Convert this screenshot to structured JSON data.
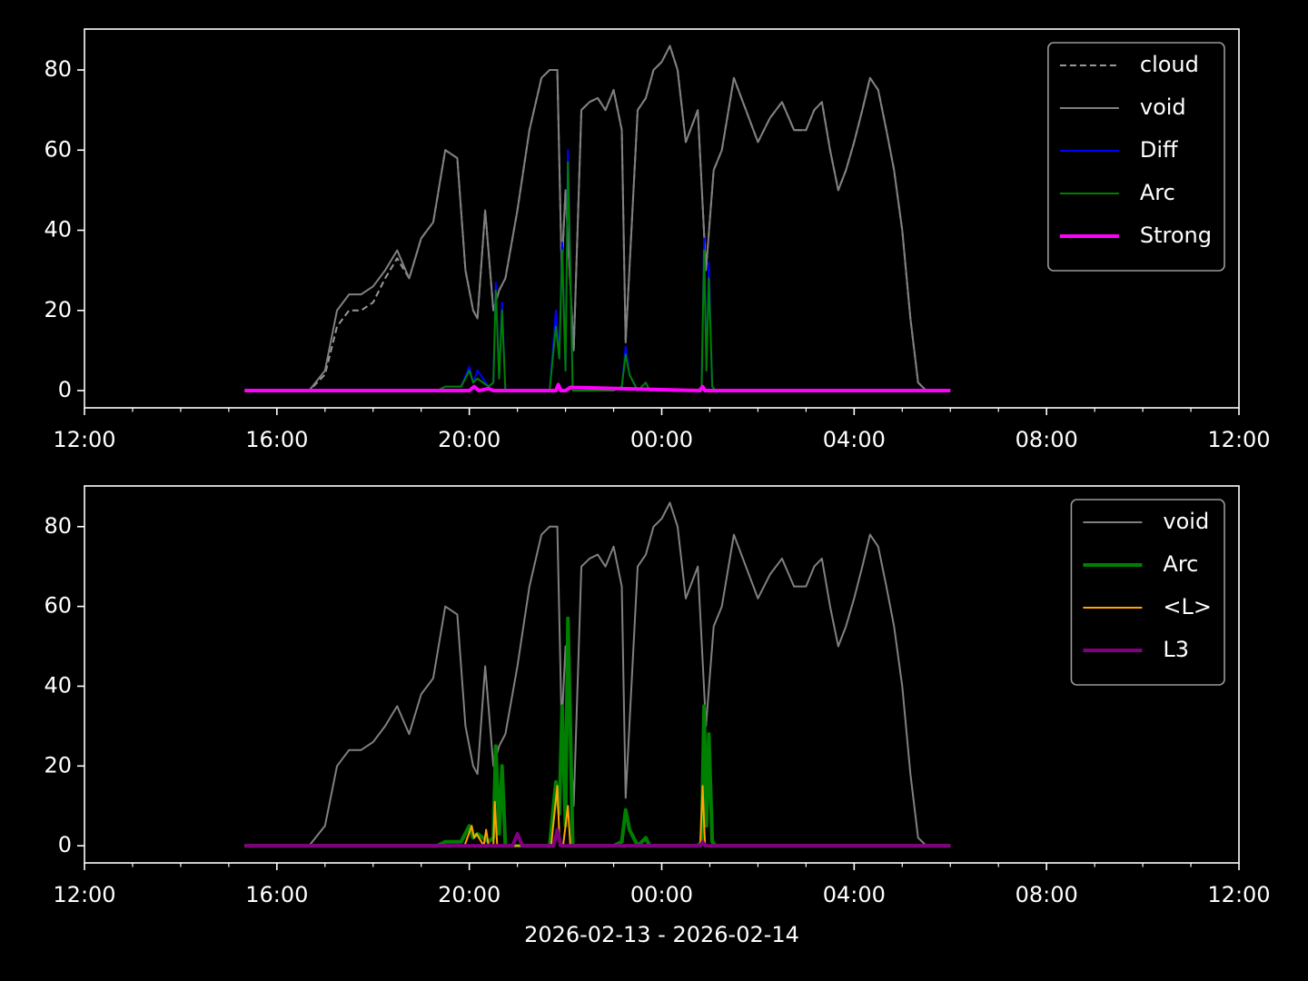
{
  "chart_data": [
    {
      "type": "line",
      "xlim": [
        0,
        24
      ],
      "xticks": [
        {
          "value": 0,
          "label": "12:00"
        },
        {
          "value": 4,
          "label": "16:00"
        },
        {
          "value": 8,
          "label": "20:00"
        },
        {
          "value": 12,
          "label": "00:00"
        },
        {
          "value": 16,
          "label": "04:00"
        },
        {
          "value": 20,
          "label": "08:00"
        },
        {
          "value": 24,
          "label": "12:00"
        }
      ],
      "xminorticks": [
        1,
        2,
        3,
        5,
        6,
        7,
        9,
        10,
        11,
        13,
        14,
        15,
        17,
        18,
        19,
        21,
        22,
        23
      ],
      "ylim": [
        -4.3,
        90.2
      ],
      "yticks": [
        0,
        20,
        40,
        60,
        80
      ],
      "legend": "upper right",
      "series": [
        {
          "name": "cloud",
          "color": "#999999",
          "linestyle": "dashed",
          "linewidth": 2,
          "x": [
            3.33,
            4.67,
            5.0,
            5.25,
            5.5,
            5.75,
            6.0,
            6.25,
            6.5,
            6.75,
            7.0,
            7.25,
            7.5,
            7.75,
            7.92,
            8.08,
            8.17,
            8.33,
            8.5,
            8.62,
            8.75,
            9.0,
            9.25,
            9.5,
            9.67,
            9.83,
            9.92,
            10.0,
            10.17,
            10.33,
            10.5,
            10.67,
            10.83,
            11.0,
            11.17,
            11.25,
            11.5,
            11.67,
            11.83,
            12.0,
            12.17,
            12.33,
            12.5,
            12.75,
            12.92,
            13.08,
            13.25,
            13.5,
            13.75,
            14.0,
            14.25,
            14.5,
            14.75,
            15.0,
            15.17,
            15.33,
            15.5,
            15.67,
            15.83,
            16.0,
            16.17,
            16.33,
            16.5,
            16.67,
            16.83,
            17.0,
            17.17,
            17.33,
            17.5,
            18.0
          ],
          "values": [
            0,
            0,
            4,
            16,
            20,
            20,
            22,
            28,
            33,
            28,
            38,
            42,
            60,
            58,
            30,
            20,
            18,
            45,
            20,
            25,
            28,
            45,
            65,
            78,
            80,
            80,
            30,
            50,
            10,
            70,
            72,
            73,
            70,
            75,
            65,
            12,
            70,
            73,
            80,
            82,
            86,
            80,
            62,
            70,
            30,
            55,
            60,
            78,
            70,
            62,
            68,
            72,
            65,
            65,
            70,
            72,
            60,
            50,
            55,
            62,
            70,
            78,
            75,
            65,
            55,
            40,
            18,
            2,
            0,
            0
          ]
        },
        {
          "name": "void",
          "color": "#808080",
          "linestyle": "solid",
          "linewidth": 2,
          "x": [
            3.33,
            4.67,
            5.0,
            5.25,
            5.5,
            5.75,
            6.0,
            6.25,
            6.5,
            6.75,
            7.0,
            7.25,
            7.5,
            7.75,
            7.92,
            8.08,
            8.17,
            8.33,
            8.5,
            8.62,
            8.75,
            9.0,
            9.25,
            9.5,
            9.67,
            9.83,
            9.92,
            10.0,
            10.17,
            10.33,
            10.5,
            10.67,
            10.83,
            11.0,
            11.17,
            11.25,
            11.5,
            11.67,
            11.83,
            12.0,
            12.17,
            12.33,
            12.5,
            12.75,
            12.92,
            13.08,
            13.25,
            13.5,
            13.75,
            14.0,
            14.25,
            14.5,
            14.75,
            15.0,
            15.17,
            15.33,
            15.5,
            15.67,
            15.83,
            16.0,
            16.17,
            16.33,
            16.5,
            16.67,
            16.83,
            17.0,
            17.17,
            17.33,
            17.5,
            18.0
          ],
          "values": [
            0,
            0,
            5,
            20,
            24,
            24,
            26,
            30,
            35,
            28,
            38,
            42,
            60,
            58,
            30,
            20,
            18,
            45,
            20,
            25,
            28,
            45,
            65,
            78,
            80,
            80,
            30,
            50,
            10,
            70,
            72,
            73,
            70,
            75,
            65,
            12,
            70,
            73,
            80,
            82,
            86,
            80,
            62,
            70,
            30,
            55,
            60,
            78,
            70,
            62,
            68,
            72,
            65,
            65,
            70,
            72,
            60,
            50,
            55,
            62,
            70,
            78,
            75,
            65,
            55,
            40,
            18,
            2,
            0,
            0
          ]
        },
        {
          "name": "Diff",
          "color": "#0000ff",
          "linestyle": "solid",
          "linewidth": 2,
          "x": [
            3.33,
            7.33,
            7.5,
            7.83,
            8.0,
            8.08,
            8.17,
            8.4,
            8.5,
            8.55,
            8.62,
            8.68,
            8.75,
            9.0,
            9.67,
            9.8,
            9.87,
            9.93,
            10.0,
            10.05,
            10.1,
            10.15,
            10.22,
            10.3,
            11.0,
            11.17,
            11.25,
            11.33,
            11.5,
            11.67,
            11.75,
            12.5,
            12.75,
            12.83,
            12.88,
            12.93,
            12.98,
            13.05,
            13.12,
            18.0
          ],
          "values": [
            0,
            0,
            1,
            1,
            6,
            2,
            5,
            1,
            2,
            27,
            3,
            22,
            0,
            0,
            0,
            20,
            8,
            37,
            5,
            60,
            32,
            0,
            0,
            0,
            0,
            1,
            11,
            4,
            0,
            2,
            0,
            0,
            0,
            1,
            38,
            5,
            32,
            1,
            0,
            0
          ]
        },
        {
          "name": "Arc",
          "color": "#008000",
          "linestyle": "solid",
          "linewidth": 2,
          "x": [
            3.33,
            7.33,
            7.5,
            7.83,
            8.0,
            8.08,
            8.17,
            8.4,
            8.5,
            8.55,
            8.62,
            8.68,
            8.75,
            9.0,
            9.67,
            9.8,
            9.87,
            9.93,
            10.0,
            10.05,
            10.1,
            10.15,
            10.22,
            10.3,
            11.0,
            11.17,
            11.25,
            11.33,
            11.5,
            11.67,
            11.75,
            12.5,
            12.75,
            12.83,
            12.88,
            12.93,
            12.98,
            13.05,
            13.12,
            18.0
          ],
          "values": [
            0,
            0,
            1,
            1,
            5,
            2,
            3,
            1,
            2,
            25,
            3,
            20,
            0,
            0,
            0,
            16,
            8,
            35,
            5,
            57,
            30,
            0,
            0,
            0,
            0,
            1,
            9,
            4,
            0,
            2,
            0,
            0,
            0,
            1,
            35,
            5,
            28,
            1,
            0,
            0
          ]
        },
        {
          "name": "Strong",
          "color": "#ff00ff",
          "linestyle": "solid",
          "linewidth": 4,
          "x": [
            3.33,
            8.0,
            8.1,
            8.2,
            8.4,
            8.5,
            9.8,
            9.85,
            9.9,
            10.0,
            10.1,
            12.8,
            12.85,
            12.9,
            18.0
          ],
          "values": [
            0,
            0,
            1,
            0,
            0.5,
            0,
            0,
            1.5,
            0,
            0,
            0.8,
            0,
            1,
            0,
            0
          ]
        }
      ]
    },
    {
      "type": "line",
      "xlim": [
        0,
        24
      ],
      "xticks": [
        {
          "value": 0,
          "label": "12:00"
        },
        {
          "value": 4,
          "label": "16:00"
        },
        {
          "value": 8,
          "label": "20:00"
        },
        {
          "value": 12,
          "label": "00:00"
        },
        {
          "value": 16,
          "label": "04:00"
        },
        {
          "value": 20,
          "label": "08:00"
        },
        {
          "value": 24,
          "label": "12:00"
        }
      ],
      "xminorticks": [
        1,
        2,
        3,
        5,
        6,
        7,
        9,
        10,
        11,
        13,
        14,
        15,
        17,
        18,
        19,
        21,
        22,
        23
      ],
      "ylim": [
        -4.3,
        90.2
      ],
      "yticks": [
        0,
        20,
        40,
        60,
        80
      ],
      "legend": "upper right",
      "xlabel": "2026-02-13 - 2026-02-14",
      "series": [
        {
          "name": "void",
          "color": "#808080",
          "linestyle": "solid",
          "linewidth": 2,
          "x": [
            3.33,
            4.67,
            5.0,
            5.25,
            5.5,
            5.75,
            6.0,
            6.25,
            6.5,
            6.75,
            7.0,
            7.25,
            7.5,
            7.75,
            7.92,
            8.08,
            8.17,
            8.33,
            8.5,
            8.62,
            8.75,
            9.0,
            9.25,
            9.5,
            9.67,
            9.83,
            9.92,
            10.0,
            10.17,
            10.33,
            10.5,
            10.67,
            10.83,
            11.0,
            11.17,
            11.25,
            11.5,
            11.67,
            11.83,
            12.0,
            12.17,
            12.33,
            12.5,
            12.75,
            12.92,
            13.08,
            13.25,
            13.5,
            13.75,
            14.0,
            14.25,
            14.5,
            14.75,
            15.0,
            15.17,
            15.33,
            15.5,
            15.67,
            15.83,
            16.0,
            16.17,
            16.33,
            16.5,
            16.67,
            16.83,
            17.0,
            17.17,
            17.33,
            17.5,
            18.0
          ],
          "values": [
            0,
            0,
            5,
            20,
            24,
            24,
            26,
            30,
            35,
            28,
            38,
            42,
            60,
            58,
            30,
            20,
            18,
            45,
            20,
            25,
            28,
            45,
            65,
            78,
            80,
            80,
            30,
            50,
            10,
            70,
            72,
            73,
            70,
            75,
            65,
            12,
            70,
            73,
            80,
            82,
            86,
            80,
            62,
            70,
            30,
            55,
            60,
            78,
            70,
            62,
            68,
            72,
            65,
            65,
            70,
            72,
            60,
            50,
            55,
            62,
            70,
            78,
            75,
            65,
            55,
            40,
            18,
            2,
            0,
            0
          ]
        },
        {
          "name": "Arc",
          "color": "#008000",
          "linestyle": "solid",
          "linewidth": 4,
          "x": [
            3.33,
            7.33,
            7.5,
            7.83,
            8.0,
            8.08,
            8.17,
            8.4,
            8.5,
            8.55,
            8.62,
            8.68,
            8.75,
            9.0,
            9.67,
            9.8,
            9.87,
            9.93,
            10.0,
            10.05,
            10.1,
            10.15,
            10.22,
            10.3,
            11.0,
            11.17,
            11.25,
            11.33,
            11.5,
            11.67,
            11.75,
            12.5,
            12.75,
            12.83,
            12.88,
            12.93,
            12.98,
            13.05,
            13.12,
            18.0
          ],
          "values": [
            0,
            0,
            1,
            1,
            5,
            2,
            3,
            1,
            2,
            25,
            3,
            20,
            0,
            0,
            0,
            16,
            8,
            35,
            5,
            57,
            30,
            0,
            0,
            0,
            0,
            1,
            9,
            4,
            0,
            2,
            0,
            0,
            0,
            1,
            35,
            5,
            28,
            1,
            0,
            0
          ]
        },
        {
          "name": "<L>",
          "color": "#ffa500",
          "linestyle": "solid",
          "linewidth": 2,
          "x": [
            3.33,
            7.9,
            8.05,
            8.1,
            8.15,
            8.3,
            8.35,
            8.4,
            8.5,
            8.53,
            8.58,
            9.7,
            9.83,
            9.88,
            9.95,
            10.05,
            10.1,
            10.3,
            12.8,
            12.85,
            12.9,
            18.0
          ],
          "values": [
            0,
            0,
            5,
            2,
            3,
            0,
            4,
            0,
            0,
            11,
            0,
            0,
            15,
            0,
            0,
            10,
            0,
            0,
            0,
            15,
            0,
            0
          ]
        },
        {
          "name": "L3",
          "color": "#800080",
          "linestyle": "solid",
          "linewidth": 4,
          "x": [
            3.33,
            8.9,
            9.0,
            9.1,
            9.75,
            9.83,
            9.9,
            12.8,
            12.85,
            12.9,
            18.0
          ],
          "values": [
            0,
            0,
            3,
            0,
            0,
            4,
            0,
            0,
            1,
            0,
            0
          ]
        }
      ]
    }
  ]
}
